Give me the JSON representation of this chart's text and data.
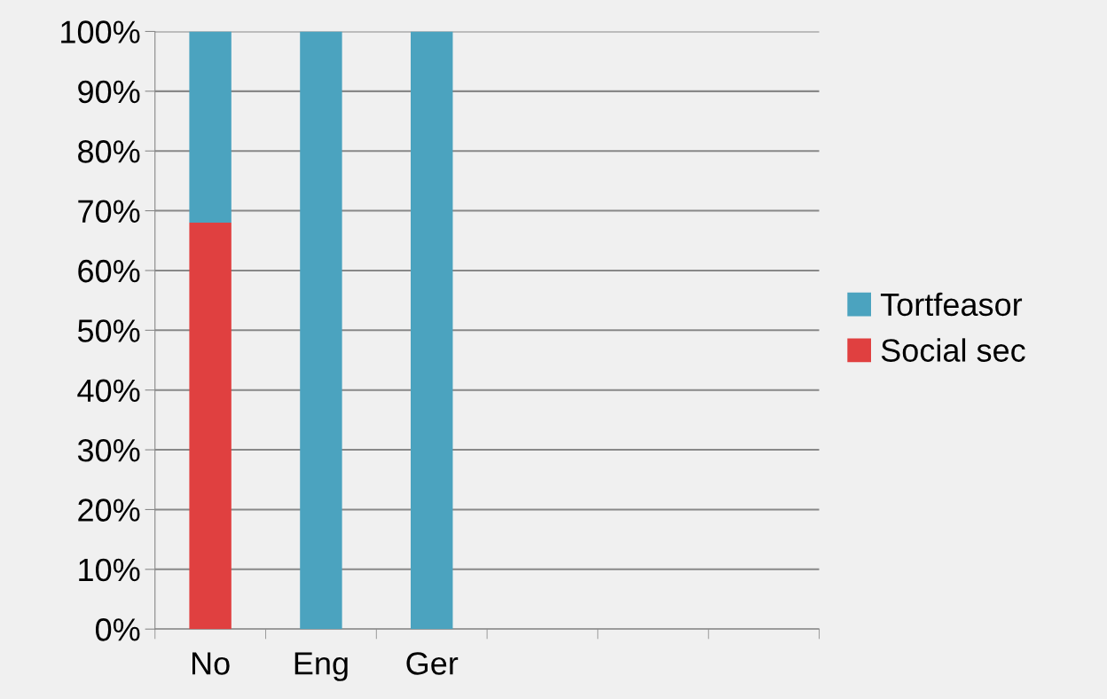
{
  "chart_data": {
    "type": "bar",
    "stacked": true,
    "categories": [
      "No",
      "Eng",
      "Ger",
      null,
      null,
      null
    ],
    "series": [
      {
        "name": "Social sec",
        "color": "#e04040",
        "values": [
          68,
          0,
          0,
          null,
          null,
          null
        ]
      },
      {
        "name": "Tortfeasor",
        "color": "#4ba3bf",
        "values": [
          32,
          100,
          100,
          null,
          null,
          null
        ]
      }
    ],
    "ylim": [
      0,
      100
    ],
    "yticks": [
      {
        "value": 0,
        "label": "0%"
      },
      {
        "value": 10,
        "label": "10%"
      },
      {
        "value": 20,
        "label": "20%"
      },
      {
        "value": 30,
        "label": "30%"
      },
      {
        "value": 40,
        "label": "40%"
      },
      {
        "value": 50,
        "label": "50%"
      },
      {
        "value": 60,
        "label": "60%"
      },
      {
        "value": 70,
        "label": "70%"
      },
      {
        "value": 80,
        "label": "80%"
      },
      {
        "value": 90,
        "label": "90%"
      },
      {
        "value": 100,
        "label": "100%"
      }
    ],
    "grid": "y",
    "legend": "right"
  }
}
